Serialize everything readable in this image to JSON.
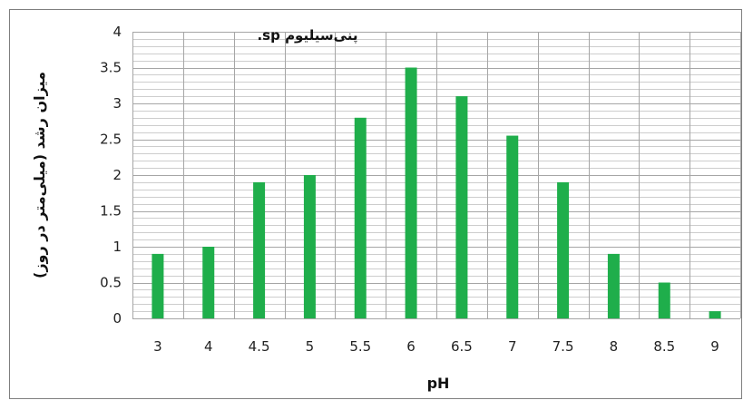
{
  "chart_data": {
    "type": "bar",
    "title": "پنی‌سیلیوم sp.",
    "xlabel": "pH",
    "ylabel": "میزان رشد (میلی‌متر در روز)",
    "categories": [
      "3",
      "4",
      "4.5",
      "5",
      "5.5",
      "6",
      "6.5",
      "7",
      "7.5",
      "8",
      "8.5",
      "9"
    ],
    "series": [
      {
        "values": [
          0.9,
          1.0,
          1.9,
          2.0,
          2.8,
          3.5,
          3.1,
          2.55,
          1.9,
          0.9,
          0.5,
          0.1
        ]
      }
    ],
    "ylim": [
      0,
      4
    ],
    "yticks": [
      "0",
      "0.5",
      "1",
      "1.5",
      "2",
      "2.5",
      "3",
      "3.5",
      "4"
    ],
    "grid": "on",
    "legend": "none",
    "bar_color": "#1fae4b",
    "grid_color": "#a6a6a6"
  }
}
